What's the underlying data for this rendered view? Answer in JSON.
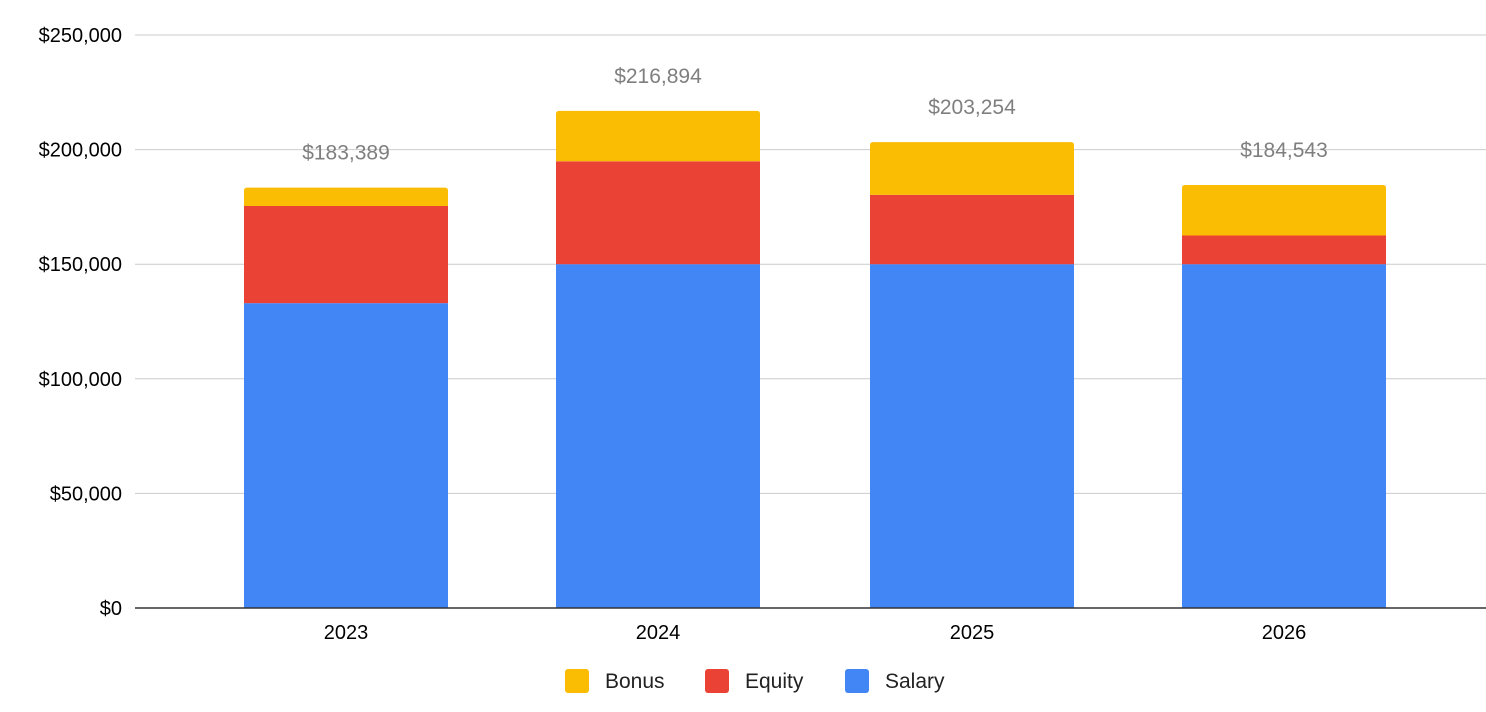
{
  "chart_data": {
    "type": "bar",
    "stacked": true,
    "categories": [
      "2023",
      "2024",
      "2025",
      "2026"
    ],
    "series": [
      {
        "name": "Salary",
        "color": "#4285F4",
        "values": [
          133000,
          150000,
          150000,
          150000
        ]
      },
      {
        "name": "Equity",
        "color": "#EA4335",
        "values": [
          42389,
          44894,
          30254,
          12543
        ]
      },
      {
        "name": "Bonus",
        "color": "#FBBC04",
        "values": [
          8000,
          22000,
          23000,
          22000
        ]
      }
    ],
    "totals": [
      183389,
      216894,
      203254,
      184543
    ],
    "total_labels": [
      "$183,389",
      "$216,894",
      "$203,254",
      "$184,543"
    ],
    "ylim": [
      0,
      250000
    ],
    "y_ticks": [
      0,
      50000,
      100000,
      150000,
      200000,
      250000
    ],
    "y_tick_labels": [
      "$0",
      "$50,000",
      "$100,000",
      "$150,000",
      "$200,000",
      "$250,000"
    ],
    "legend": {
      "position": "bottom",
      "entries": [
        {
          "name": "Bonus",
          "color": "#FBBC04"
        },
        {
          "name": "Equity",
          "color": "#EA4335"
        },
        {
          "name": "Salary",
          "color": "#4285F4"
        }
      ]
    },
    "grid": true,
    "title": "",
    "xlabel": "",
    "ylabel": ""
  }
}
